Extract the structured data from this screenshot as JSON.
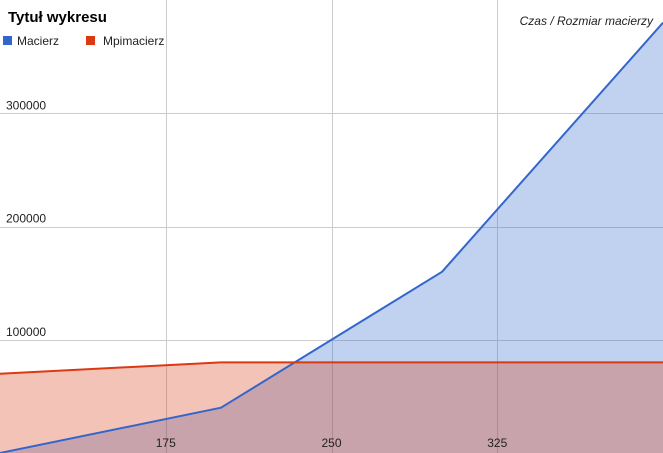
{
  "chart_data": {
    "type": "area",
    "title": "Tytuł wykresu",
    "axis_title": "Czas / Rozmiar macierzy",
    "x": [
      100,
      200,
      300,
      400
    ],
    "xlim": [
      100,
      400
    ],
    "ylim": [
      0,
      400000
    ],
    "x_ticks": [
      175,
      250,
      325
    ],
    "y_ticks": [
      100000,
      200000,
      300000
    ],
    "grid": true,
    "legend_position": "top-left",
    "series": [
      {
        "name": "Macierz",
        "color": "#3366cc",
        "values": [
          0,
          40000,
          160000,
          380000
        ]
      },
      {
        "name": "Mpimacierz",
        "color": "#dc3912",
        "values": [
          70000,
          80000,
          80000,
          80000
        ]
      }
    ]
  }
}
